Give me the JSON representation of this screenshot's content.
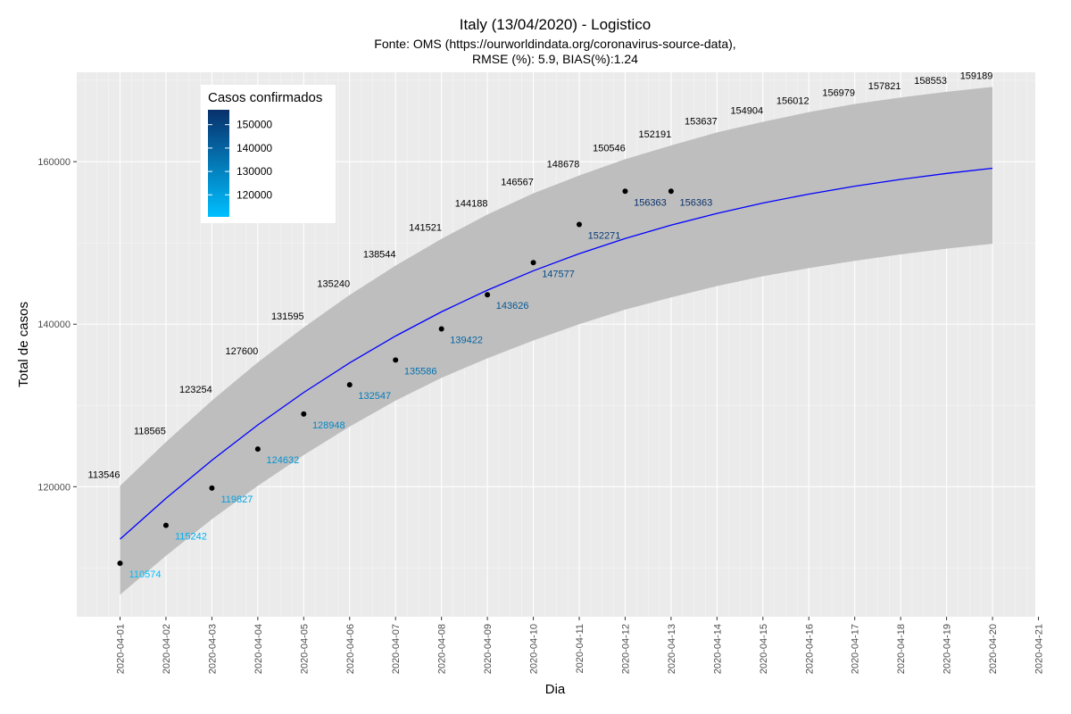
{
  "chart_data": {
    "type": "line",
    "title": "Italy (13/04/2020) - Logistico",
    "subtitle_lines": [
      "Fonte: OMS (https://ourworldindata.org/coronavirus-source-data),",
      "RMSE (%): 5.9, BIAS(%):1.24"
    ],
    "xlabel": "Dia",
    "ylabel": "Total de casos",
    "x_ticks": [
      "2020-04-01",
      "2020-04-02",
      "2020-04-03",
      "2020-04-04",
      "2020-04-05",
      "2020-04-06",
      "2020-04-07",
      "2020-04-08",
      "2020-04-09",
      "2020-04-10",
      "2020-04-11",
      "2020-04-12",
      "2020-04-13",
      "2020-04-14",
      "2020-04-15",
      "2020-04-16",
      "2020-04-17",
      "2020-04-18",
      "2020-04-19",
      "2020-04-20",
      "2020-04-21"
    ],
    "y_ticks": [
      120000,
      140000,
      160000
    ],
    "ylim": [
      104000,
      171000
    ],
    "grid": true,
    "model": {
      "x": [
        "2020-04-01",
        "2020-04-02",
        "2020-04-03",
        "2020-04-04",
        "2020-04-05",
        "2020-04-06",
        "2020-04-07",
        "2020-04-08",
        "2020-04-09",
        "2020-04-10",
        "2020-04-11",
        "2020-04-12",
        "2020-04-13",
        "2020-04-14",
        "2020-04-15",
        "2020-04-16",
        "2020-04-17",
        "2020-04-18",
        "2020-04-19",
        "2020-04-20"
      ],
      "values": [
        113546,
        118565,
        123254,
        127600,
        131595,
        135240,
        138544,
        141521,
        144188,
        146567,
        148678,
        150546,
        152191,
        153637,
        154904,
        156012,
        156979,
        157821,
        158553,
        159189
      ],
      "lower": [
        106700,
        111500,
        116000,
        120100,
        123900,
        127400,
        130600,
        133400,
        135800,
        138000,
        140000,
        141800,
        143300,
        144700,
        145900,
        146900,
        147800,
        148600,
        149300,
        149900
      ],
      "upper": [
        120100,
        125500,
        130600,
        135300,
        139600,
        143600,
        147200,
        150500,
        153500,
        156100,
        158300,
        160300,
        162000,
        163600,
        164900,
        166100,
        167100,
        167900,
        168600,
        169200
      ],
      "line_color": "#0000ff"
    },
    "observed": {
      "x": [
        "2020-04-01",
        "2020-04-02",
        "2020-04-03",
        "2020-04-04",
        "2020-04-05",
        "2020-04-06",
        "2020-04-07",
        "2020-04-08",
        "2020-04-09",
        "2020-04-10",
        "2020-04-11",
        "2020-04-12",
        "2020-04-13"
      ],
      "values": [
        110574,
        115242,
        119827,
        124632,
        128948,
        132547,
        135586,
        139422,
        143626,
        147577,
        152271,
        156363,
        156363
      ]
    },
    "legend": {
      "title": "Casos confirmados",
      "ticks": [
        150000,
        140000,
        130000,
        120000
      ],
      "range": [
        110574,
        156363
      ],
      "color_low": "#00bfff",
      "color_high": "#08306b",
      "placement": "top-left"
    },
    "panel_bg": "#ebebeb",
    "ribbon_color": "#bebebe"
  }
}
